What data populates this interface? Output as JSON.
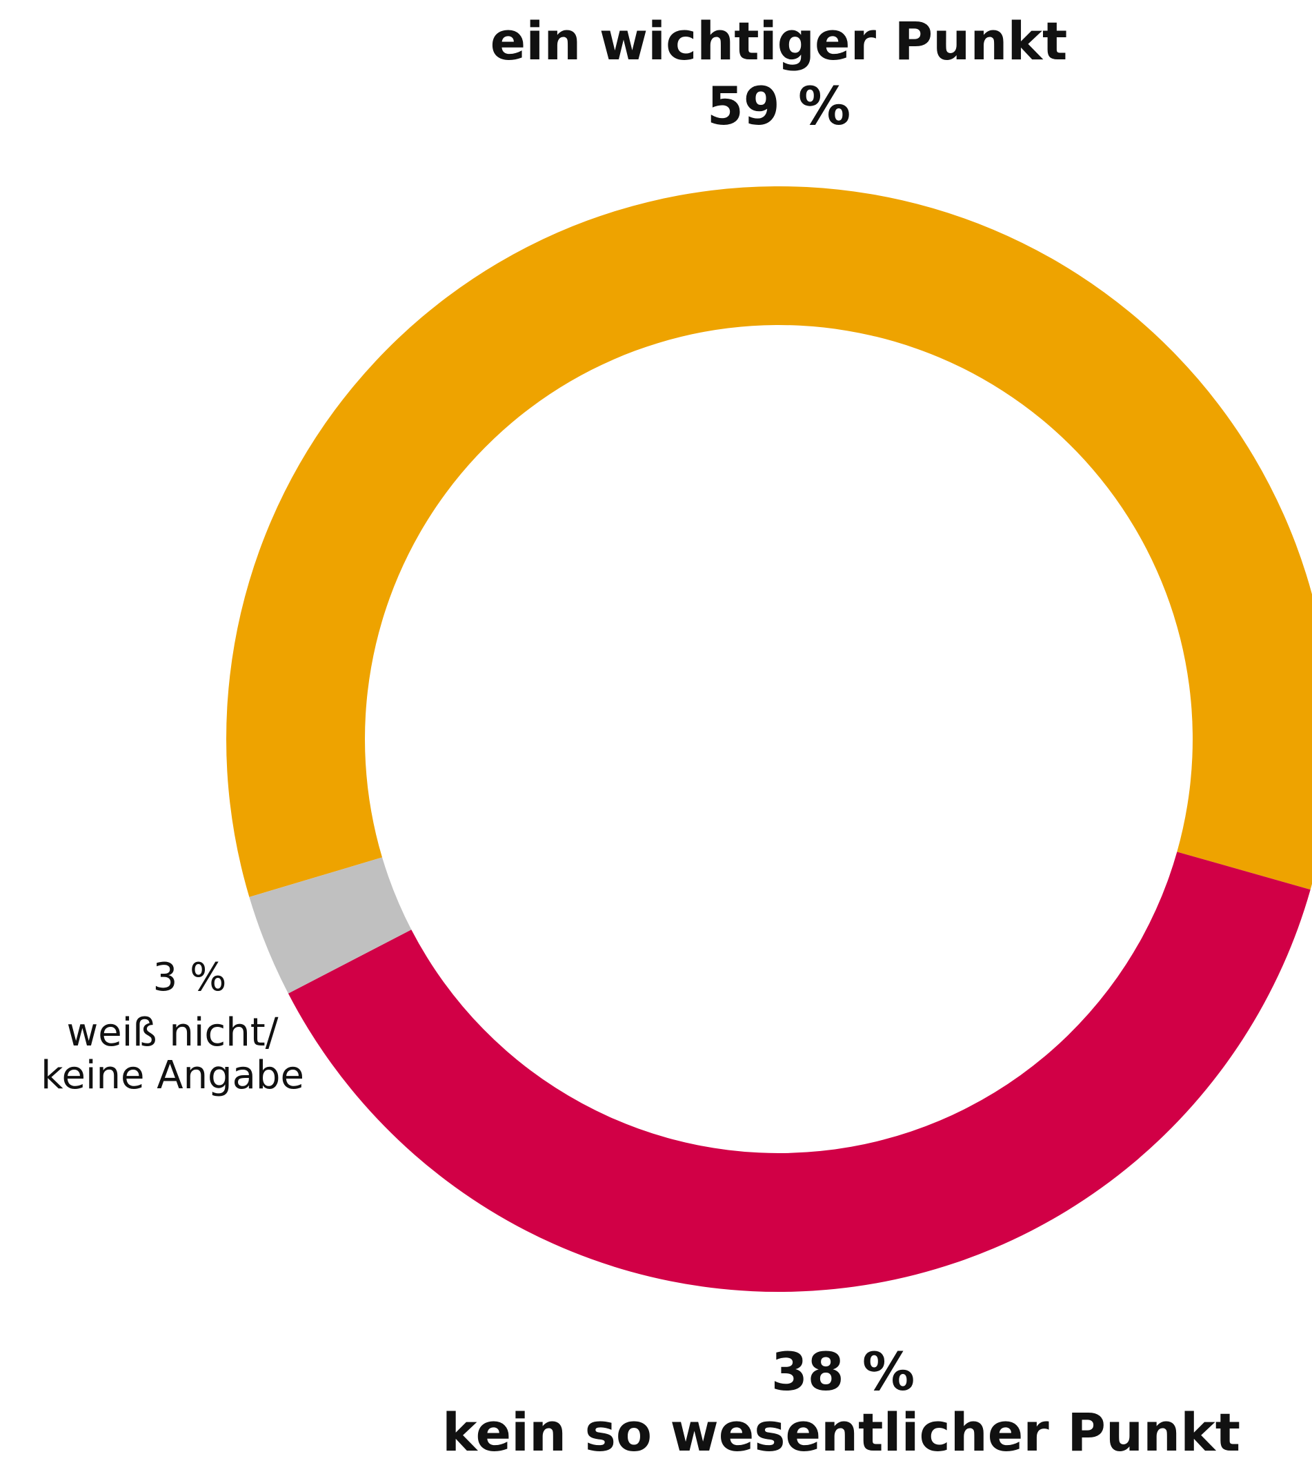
{
  "chart_data": {
    "type": "donut",
    "categories": [
      "ein wichtiger Punkt",
      "kein so wesentlicher Punkt",
      "weiß nicht/ keine Angabe"
    ],
    "values": [
      59,
      38,
      3
    ],
    "value_labels": [
      "59 %",
      "38 %",
      "3 %"
    ],
    "colors": [
      "#eea300",
      "#d10046",
      "#c0c0c0"
    ]
  }
}
